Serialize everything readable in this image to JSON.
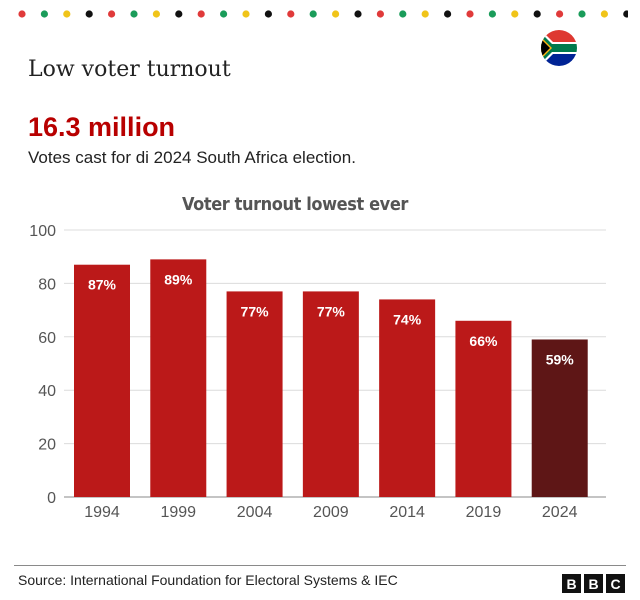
{
  "header": {
    "title": "Low voter turnout",
    "headline_number": "16.3 million",
    "subtitle": "Votes cast for di 2024 South Africa election.",
    "flag_icon": "south-africa-flag-icon"
  },
  "decoration": {
    "dot_colors": [
      "#e03a3a",
      "#1a9c5a",
      "#f0c419",
      "#111111"
    ]
  },
  "chart_data": {
    "type": "bar",
    "title": "Voter turnout lowest ever",
    "xlabel": "",
    "ylabel": "",
    "categories": [
      "1994",
      "1999",
      "2004",
      "2009",
      "2014",
      "2019",
      "2024"
    ],
    "values": [
      87,
      89,
      77,
      77,
      74,
      66,
      59
    ],
    "value_labels": [
      "87%",
      "89%",
      "77%",
      "77%",
      "74%",
      "66%",
      "59%"
    ],
    "ylim": [
      0,
      100
    ],
    "yticks": [
      0,
      20,
      40,
      60,
      80,
      100
    ],
    "grid": true,
    "colors": {
      "default": "#bb1919",
      "highlight": "#5e1616"
    },
    "highlight_category": "2024"
  },
  "footer": {
    "source": "Source: International Foundation for Electoral Systems & IEC",
    "logo_letters": [
      "B",
      "B",
      "C"
    ]
  }
}
